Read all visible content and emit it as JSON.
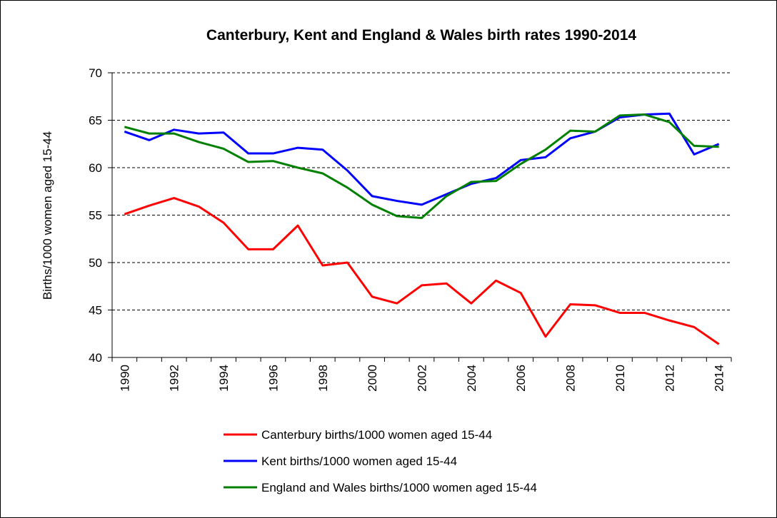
{
  "chart_data": {
    "type": "line",
    "title": "Canterbury, Kent and England & Wales birth rates 1990-2014",
    "y_label": "Births/1000 women  aged 15-44",
    "categories": [
      "1990",
      null,
      "1992",
      null,
      "1994",
      null,
      "1996",
      null,
      "1998",
      null,
      "2000",
      null,
      "2002",
      null,
      "2004",
      null,
      "2006",
      null,
      "2008",
      null,
      "2010",
      null,
      "2012",
      null,
      "2014"
    ],
    "series": [
      {
        "name": "Canterbury births/1000 women aged 15-44",
        "color": "#ff0000",
        "values": [
          55.1,
          56.0,
          56.8,
          55.9,
          54.2,
          51.4,
          51.4,
          53.9,
          49.7,
          50.0,
          46.4,
          45.7,
          47.6,
          47.8,
          45.7,
          48.1,
          46.8,
          42.2,
          45.6,
          45.5,
          44.7,
          44.7,
          43.9,
          43.2,
          41.4
        ]
      },
      {
        "name": "Kent births/1000 women aged 15-44",
        "color": "#0000ff",
        "values": [
          63.8,
          62.9,
          64.0,
          63.6,
          63.7,
          61.5,
          61.5,
          62.1,
          61.9,
          59.7,
          57.0,
          56.5,
          56.1,
          57.2,
          58.3,
          58.9,
          60.8,
          61.1,
          63.1,
          63.8,
          65.3,
          65.6,
          65.7,
          61.4,
          62.5
        ]
      },
      {
        "name": "England and Wales births/1000 women aged 15-44",
        "color": "#008000",
        "values": [
          64.3,
          63.6,
          63.6,
          62.7,
          62.0,
          60.6,
          60.7,
          60.0,
          59.4,
          57.9,
          56.1,
          54.9,
          54.7,
          57.0,
          58.5,
          58.6,
          60.4,
          61.9,
          63.9,
          63.8,
          65.5,
          65.6,
          64.8,
          62.3,
          62.2
        ]
      }
    ],
    "ylim": [
      40,
      70
    ],
    "yticks": [
      40,
      45,
      50,
      55,
      60,
      65,
      70
    ],
    "grid": true,
    "legend": "bottom"
  }
}
